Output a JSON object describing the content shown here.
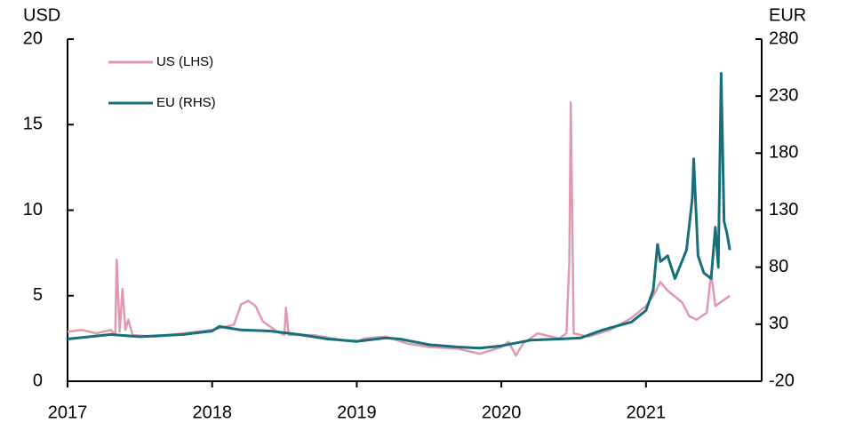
{
  "chart_data": {
    "type": "line",
    "y_label": "USD",
    "y2_label": "EUR",
    "xlim": [
      2017,
      2021.8
    ],
    "xticks": [
      2017,
      2018,
      2019,
      2020,
      2021
    ],
    "ylim": [
      0,
      20
    ],
    "yticks": [
      0,
      5,
      10,
      15,
      20
    ],
    "y2lim": [
      -20,
      280
    ],
    "y2ticks": [
      -20,
      30,
      80,
      130,
      180,
      230,
      280
    ],
    "legend": "upper left",
    "series": [
      {
        "name": "US (LHS)",
        "color": "#df9aad",
        "axis": "y",
        "x": [
          2017.0,
          2017.1,
          2017.2,
          2017.3,
          2017.33,
          2017.34,
          2017.36,
          2017.38,
          2017.4,
          2017.42,
          2017.45,
          2017.6,
          2017.8,
          2018.0,
          2018.15,
          2018.2,
          2018.25,
          2018.3,
          2018.35,
          2018.45,
          2018.5,
          2018.51,
          2018.53,
          2018.7,
          2018.9,
          2019.0,
          2019.05,
          2019.2,
          2019.35,
          2019.5,
          2019.7,
          2019.85,
          2020.0,
          2020.05,
          2020.1,
          2020.15,
          2020.25,
          2020.4,
          2020.45,
          2020.47,
          2020.48,
          2020.5,
          2020.6,
          2020.75,
          2020.9,
          2021.0,
          2021.05,
          2021.1,
          2021.15,
          2021.25,
          2021.3,
          2021.35,
          2021.42,
          2021.45,
          2021.48,
          2021.58
        ],
        "values": [
          2.9,
          3.0,
          2.8,
          3.0,
          2.7,
          7.1,
          2.9,
          5.4,
          3.0,
          3.6,
          2.7,
          2.6,
          2.8,
          3.0,
          3.3,
          4.5,
          4.7,
          4.4,
          3.5,
          2.9,
          2.7,
          4.3,
          2.7,
          2.7,
          2.4,
          2.3,
          2.5,
          2.6,
          2.2,
          2.0,
          1.9,
          1.6,
          2.0,
          2.3,
          1.5,
          2.2,
          2.8,
          2.5,
          2.8,
          7.0,
          16.3,
          2.8,
          2.6,
          3.0,
          3.7,
          4.4,
          5.0,
          5.8,
          5.3,
          4.6,
          3.8,
          3.6,
          4.0,
          6.3,
          4.4,
          5.0
        ]
      },
      {
        "name": "EU (RHS)",
        "color": "#176f7b",
        "axis": "y2",
        "x": [
          2017.0,
          2017.3,
          2017.5,
          2017.8,
          2018.0,
          2018.05,
          2018.2,
          2018.4,
          2018.6,
          2018.8,
          2019.0,
          2019.2,
          2019.3,
          2019.5,
          2019.7,
          2019.85,
          2020.0,
          2020.2,
          2020.4,
          2020.55,
          2020.7,
          2020.9,
          2021.0,
          2021.05,
          2021.08,
          2021.1,
          2021.15,
          2021.2,
          2021.28,
          2021.32,
          2021.33,
          2021.36,
          2021.4,
          2021.45,
          2021.48,
          2021.5,
          2021.52,
          2021.54,
          2021.56,
          2021.58
        ],
        "values": [
          17,
          21,
          19,
          21,
          24,
          28,
          25,
          24,
          21,
          17,
          15,
          18,
          17,
          12,
          10,
          9,
          11,
          16,
          17,
          18,
          25,
          32,
          42,
          60,
          100,
          85,
          90,
          70,
          95,
          140,
          175,
          90,
          75,
          70,
          115,
          80,
          250,
          120,
          110,
          95
        ]
      }
    ]
  }
}
